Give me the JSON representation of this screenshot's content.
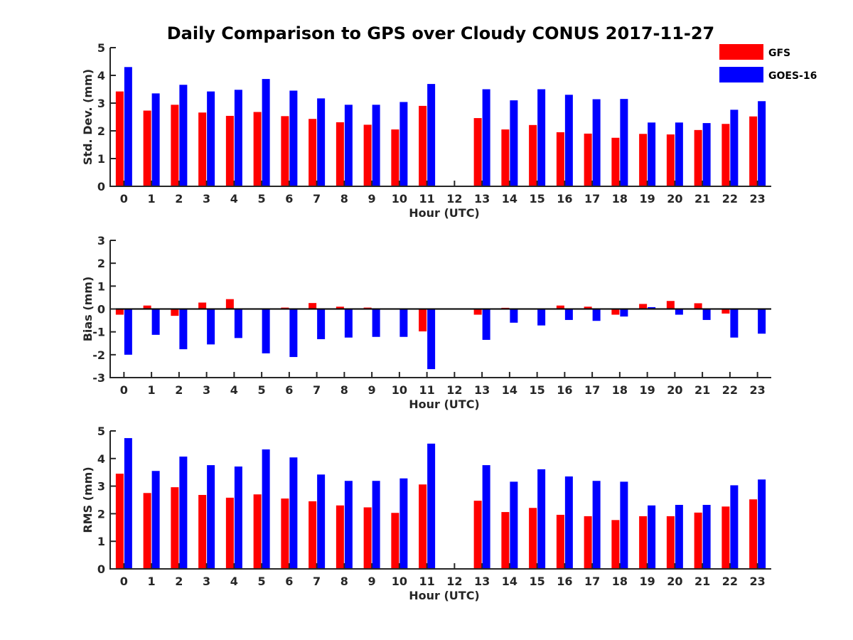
{
  "title": "Daily Comparison to GPS over Cloudy CONUS 2017-11-27",
  "colors": {
    "GFS": "#ff0000",
    "GOES-16": "#0000ff"
  },
  "legend": {
    "placement": "top-right",
    "entries": [
      "GFS",
      "GOES-16"
    ]
  },
  "chart_data": [
    {
      "type": "bar",
      "xlabel": "Hour (UTC)",
      "ylabel": "Std. Dev. (mm)",
      "ylim": [
        0,
        5
      ],
      "yticks": [
        0,
        1,
        2,
        3,
        4,
        5
      ],
      "categories": [
        "0",
        "1",
        "2",
        "3",
        "4",
        "5",
        "6",
        "7",
        "8",
        "9",
        "10",
        "11",
        "12",
        "13",
        "14",
        "15",
        "16",
        "17",
        "18",
        "19",
        "20",
        "21",
        "22",
        "23"
      ],
      "series": [
        {
          "name": "GFS",
          "values": [
            3.42,
            2.73,
            2.94,
            2.66,
            2.54,
            2.68,
            2.53,
            2.43,
            2.31,
            2.22,
            2.05,
            2.9,
            null,
            2.46,
            2.05,
            2.21,
            1.95,
            1.9,
            1.75,
            1.89,
            1.87,
            2.03,
            2.25,
            2.52
          ]
        },
        {
          "name": "GOES-16",
          "values": [
            4.3,
            3.35,
            3.66,
            3.42,
            3.48,
            3.87,
            3.45,
            3.17,
            2.94,
            2.94,
            3.04,
            3.69,
            null,
            3.5,
            3.1,
            3.5,
            3.3,
            3.14,
            3.15,
            2.3,
            2.3,
            2.28,
            2.76,
            3.07
          ]
        }
      ]
    },
    {
      "type": "bar",
      "xlabel": "Hour (UTC)",
      "ylabel": "Bias (mm)",
      "ylim": [
        -3,
        3
      ],
      "yticks": [
        -3,
        -2,
        -1,
        0,
        1,
        2,
        3
      ],
      "categories": [
        "0",
        "1",
        "2",
        "3",
        "4",
        "5",
        "6",
        "7",
        "8",
        "9",
        "10",
        "11",
        "12",
        "13",
        "14",
        "15",
        "16",
        "17",
        "18",
        "19",
        "20",
        "21",
        "22",
        "23"
      ],
      "series": [
        {
          "name": "GFS",
          "values": [
            -0.25,
            0.15,
            -0.3,
            0.28,
            0.43,
            -0.03,
            0.06,
            0.26,
            0.1,
            0.06,
            -0.03,
            -0.98,
            null,
            -0.25,
            0.05,
            -0.03,
            0.15,
            0.1,
            -0.25,
            0.22,
            0.35,
            0.25,
            -0.2,
            0.0
          ]
        },
        {
          "name": "GOES-16",
          "values": [
            -2.0,
            -1.13,
            -1.76,
            -1.55,
            -1.27,
            -1.94,
            -2.1,
            -1.32,
            -1.25,
            -1.22,
            -1.22,
            -2.63,
            null,
            -1.35,
            -0.6,
            -0.72,
            -0.48,
            -0.52,
            -0.33,
            0.08,
            -0.25,
            -0.48,
            -1.25,
            -1.08
          ]
        }
      ]
    },
    {
      "type": "bar",
      "xlabel": "Hour (UTC)",
      "ylabel": "RMS (mm)",
      "ylim": [
        0,
        5
      ],
      "yticks": [
        0,
        1,
        2,
        3,
        4,
        5
      ],
      "categories": [
        "0",
        "1",
        "2",
        "3",
        "4",
        "5",
        "6",
        "7",
        "8",
        "9",
        "10",
        "11",
        "12",
        "13",
        "14",
        "15",
        "16",
        "17",
        "18",
        "19",
        "20",
        "21",
        "22",
        "23"
      ],
      "series": [
        {
          "name": "GFS",
          "values": [
            3.45,
            2.75,
            2.96,
            2.68,
            2.58,
            2.7,
            2.55,
            2.45,
            2.3,
            2.23,
            2.03,
            3.06,
            null,
            2.47,
            2.06,
            2.21,
            1.96,
            1.91,
            1.77,
            1.91,
            1.91,
            2.04,
            2.26,
            2.52
          ]
        },
        {
          "name": "GOES-16",
          "values": [
            4.74,
            3.55,
            4.07,
            3.76,
            3.71,
            4.33,
            4.04,
            3.42,
            3.19,
            3.19,
            3.28,
            4.54,
            null,
            3.76,
            3.16,
            3.61,
            3.35,
            3.19,
            3.16,
            2.3,
            2.32,
            2.32,
            3.03,
            3.24
          ]
        }
      ]
    }
  ]
}
